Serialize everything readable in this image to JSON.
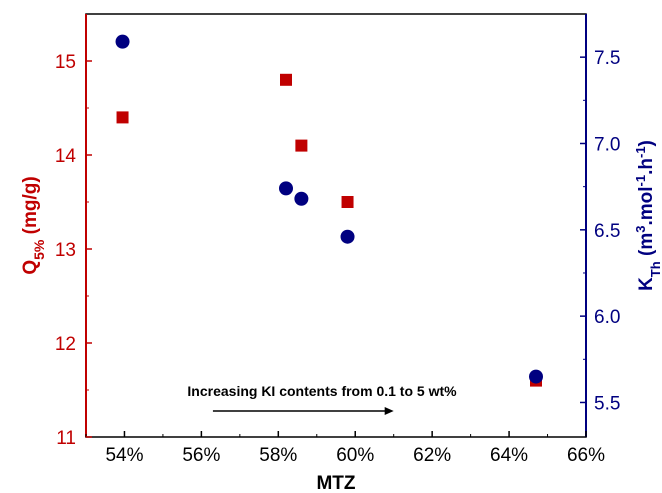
{
  "chart_data": {
    "type": "scatter",
    "xlabel": "MTZ",
    "x_ticks": [
      "54%",
      "56%",
      "58%",
      "60%",
      "62%",
      "64%",
      "66%"
    ],
    "x_tick_values": [
      54,
      56,
      58,
      60,
      62,
      64,
      66
    ],
    "xlim": [
      53,
      66
    ],
    "y_left": {
      "label_main": "Q",
      "label_sub": "5%",
      "label_tail": " (mg/g)",
      "ticks": [
        "11",
        "12",
        "13",
        "14",
        "15"
      ],
      "tick_values": [
        11,
        12,
        13,
        14,
        15
      ],
      "ylim": [
        11,
        15.5
      ],
      "color": "#c00000"
    },
    "y_right": {
      "label_main": "K",
      "label_sub": "Th",
      "label_u1": " (m",
      "label_sup1": "3",
      "label_u2": ".mol",
      "label_sup2": "-1",
      "label_u3": ".h",
      "label_sup3": "-1",
      "label_u4": ")",
      "ticks": [
        "5.5",
        "6.0",
        "6.5",
        "7.0",
        "7.5"
      ],
      "tick_values": [
        5.5,
        6.0,
        6.5,
        7.0,
        7.5
      ],
      "ylim": [
        5.3,
        7.75
      ],
      "color": "#000080"
    },
    "series": [
      {
        "axis": "left",
        "marker": "square",
        "color": "#c00000",
        "x": [
          53.95,
          58.2,
          58.6,
          59.8,
          64.7
        ],
        "y": [
          14.4,
          14.8,
          14.1,
          13.5,
          11.6
        ]
      },
      {
        "axis": "right",
        "marker": "circle",
        "color": "#000080",
        "x": [
          53.95,
          58.2,
          58.6,
          59.8,
          64.7
        ],
        "y": [
          7.59,
          6.74,
          6.68,
          6.46,
          5.65
        ]
      }
    ],
    "annotation": {
      "text": "Increasing KI contents from 0.1 to 5 wt%",
      "arrow_from_x": 56.3,
      "arrow_to_x": 61.0
    }
  }
}
